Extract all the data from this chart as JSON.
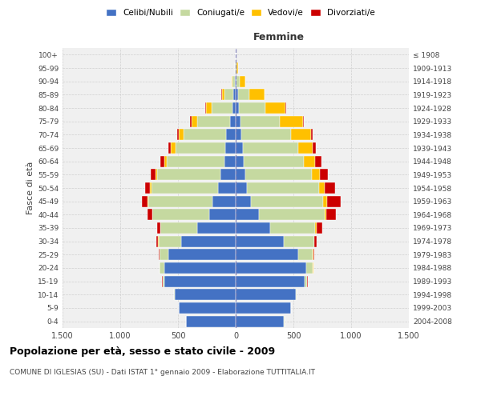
{
  "age_groups": [
    "0-4",
    "5-9",
    "10-14",
    "15-19",
    "20-24",
    "25-29",
    "30-34",
    "35-39",
    "40-44",
    "45-49",
    "50-54",
    "55-59",
    "60-64",
    "65-69",
    "70-74",
    "75-79",
    "80-84",
    "85-89",
    "90-94",
    "95-99",
    "100+"
  ],
  "birth_years": [
    "2004-2008",
    "1999-2003",
    "1994-1998",
    "1989-1993",
    "1984-1988",
    "1979-1983",
    "1974-1978",
    "1969-1973",
    "1964-1968",
    "1959-1963",
    "1954-1958",
    "1949-1953",
    "1944-1948",
    "1939-1943",
    "1934-1938",
    "1929-1933",
    "1924-1928",
    "1919-1923",
    "1914-1918",
    "1909-1913",
    "≤ 1908"
  ],
  "males": {
    "celibe": [
      430,
      490,
      530,
      620,
      620,
      580,
      470,
      330,
      230,
      200,
      150,
      130,
      100,
      90,
      80,
      50,
      30,
      20,
      8,
      3,
      2
    ],
    "coniugato": [
      1,
      2,
      5,
      15,
      40,
      80,
      200,
      320,
      490,
      560,
      580,
      550,
      500,
      430,
      370,
      280,
      180,
      80,
      20,
      4,
      1
    ],
    "vedovo": [
      0,
      0,
      0,
      0,
      0,
      1,
      1,
      2,
      3,
      5,
      10,
      15,
      20,
      40,
      45,
      55,
      50,
      20,
      5,
      2,
      0
    ],
    "divorziato": [
      0,
      0,
      1,
      2,
      3,
      5,
      15,
      30,
      40,
      50,
      45,
      40,
      30,
      20,
      15,
      10,
      5,
      2,
      1,
      0,
      0
    ]
  },
  "females": {
    "nubile": [
      420,
      480,
      520,
      600,
      610,
      540,
      420,
      300,
      200,
      130,
      100,
      80,
      70,
      60,
      50,
      40,
      30,
      20,
      10,
      5,
      2
    ],
    "coniugata": [
      1,
      2,
      5,
      20,
      60,
      130,
      260,
      390,
      570,
      630,
      620,
      580,
      520,
      480,
      430,
      340,
      230,
      100,
      25,
      5,
      1
    ],
    "vedova": [
      0,
      0,
      0,
      0,
      1,
      2,
      3,
      8,
      15,
      30,
      50,
      70,
      100,
      130,
      170,
      200,
      170,
      130,
      50,
      10,
      0
    ],
    "divorziata": [
      0,
      0,
      0,
      2,
      4,
      8,
      20,
      50,
      80,
      120,
      90,
      70,
      50,
      25,
      20,
      10,
      5,
      2,
      1,
      0,
      0
    ]
  },
  "colors": {
    "celibe": "#4472c4",
    "coniugato": "#c5d9a0",
    "vedovo": "#ffc000",
    "divorziato": "#cc0000"
  },
  "title": "Popolazione per età, sesso e stato civile - 2009",
  "subtitle": "COMUNE DI IGLESIAS (SU) - Dati ISTAT 1° gennaio 2009 - Elaborazione TUTTITALIA.IT",
  "xlabel_right": "Femmine",
  "ylabel_left": "Fasce di età",
  "legend_labels": [
    "Celibi/Nubili",
    "Coniugati/e",
    "Vedovi/e",
    "Divorziati/e"
  ],
  "xlim": 1500,
  "bg_color": "#ffffff",
  "plot_bg": "#f0f0f0",
  "grid_color": "#cccccc"
}
